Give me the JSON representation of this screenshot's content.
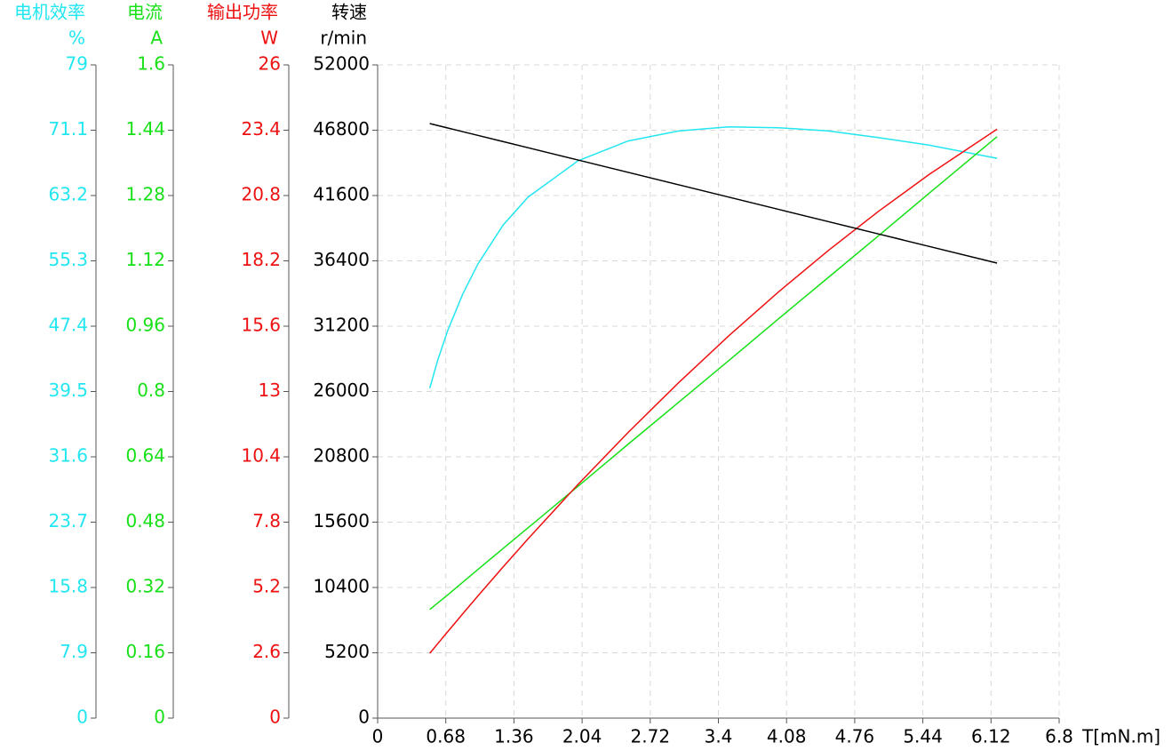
{
  "chart_data": {
    "type": "line",
    "x": [
      0.52,
      0.6,
      0.7,
      0.85,
      1.0,
      1.25,
      1.5,
      2.0,
      2.5,
      3.0,
      3.5,
      4.0,
      4.5,
      5.0,
      5.5,
      6.18
    ],
    "xlim": [
      0,
      6.8
    ],
    "xticks": [
      0,
      0.68,
      1.36,
      2.04,
      2.72,
      3.4,
      4.08,
      4.76,
      5.44,
      6.12,
      6.8
    ],
    "x_label": "T[mN.m]",
    "grid": true,
    "series": [
      {
        "name": "电机效率",
        "unit": "%",
        "color": "#22e6f0",
        "ylim": [
          0,
          79
        ],
        "yticks": [
          0,
          7.9,
          15.8,
          23.7,
          31.6,
          39.5,
          47.4,
          55.3,
          63.2,
          71.1,
          79
        ],
        "values": [
          39.9,
          43.3,
          46.9,
          51.3,
          54.9,
          59.6,
          63.0,
          67.4,
          69.8,
          71.0,
          71.5,
          71.4,
          71.0,
          70.2,
          69.3,
          67.7
        ]
      },
      {
        "name": "电流",
        "unit": "A",
        "color": "#18e018",
        "ylim": [
          0,
          1.6
        ],
        "yticks": [
          0,
          0.16,
          0.32,
          0.48,
          0.64,
          0.8,
          0.96,
          1.12,
          1.28,
          1.44,
          1.6
        ],
        "values": [
          0.266,
          0.282,
          0.302,
          0.333,
          0.364,
          0.415,
          0.466,
          0.568,
          0.671,
          0.773,
          0.875,
          0.978,
          1.08,
          1.182,
          1.285,
          1.424
        ]
      },
      {
        "name": "输出功率",
        "unit": "W",
        "color": "#ee1111",
        "ylim": [
          0,
          26
        ],
        "yticks": [
          0,
          2.6,
          5.2,
          7.8,
          10.4,
          13,
          15.6,
          18.2,
          20.8,
          23.4,
          26
        ],
        "values": [
          2.577,
          2.964,
          3.444,
          4.155,
          4.858,
          6.008,
          7.132,
          9.304,
          11.373,
          13.34,
          15.203,
          16.964,
          18.622,
          20.178,
          21.63,
          23.44
        ]
      },
      {
        "name": "转速",
        "unit": "r/min",
        "color": "#000000",
        "ylim": [
          0,
          52000
        ],
        "yticks": [
          0,
          5200,
          10400,
          15600,
          20800,
          26000,
          31200,
          36400,
          41600,
          46800,
          52000
        ],
        "values": [
          47330,
          47173,
          46977,
          46682,
          46388,
          45897,
          45406,
          44425,
          43443,
          42462,
          41480,
          40499,
          39517,
          38536,
          37554,
          36220
        ]
      }
    ]
  }
}
